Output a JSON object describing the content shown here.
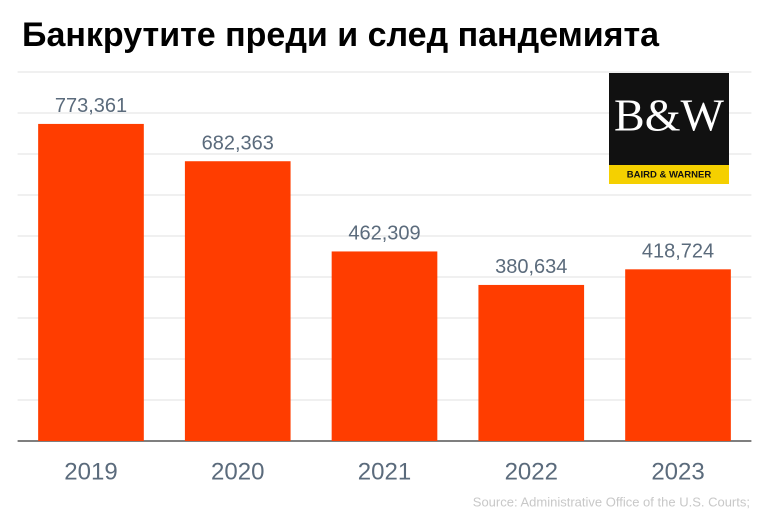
{
  "chart_data": {
    "type": "bar",
    "title": "Банкрутите преди и след пандемията",
    "categories": [
      "2019",
      "2020",
      "2021",
      "2022",
      "2023"
    ],
    "values": [
      773361,
      682363,
      462309,
      380634,
      418724
    ],
    "value_labels": [
      "773,361",
      "682,363",
      "462,309",
      "380,634",
      "418,724"
    ],
    "color": "#ff3d00",
    "ylim": [
      0,
      900000
    ],
    "yticks": [
      0,
      100000,
      200000,
      300000,
      400000,
      500000,
      600000,
      700000,
      800000,
      900000
    ],
    "grid": true,
    "source": "Source: Administrative Office of the U.S. Courts;"
  },
  "logo": {
    "mark": "B&W",
    "name": "BAIRD & WARNER"
  }
}
